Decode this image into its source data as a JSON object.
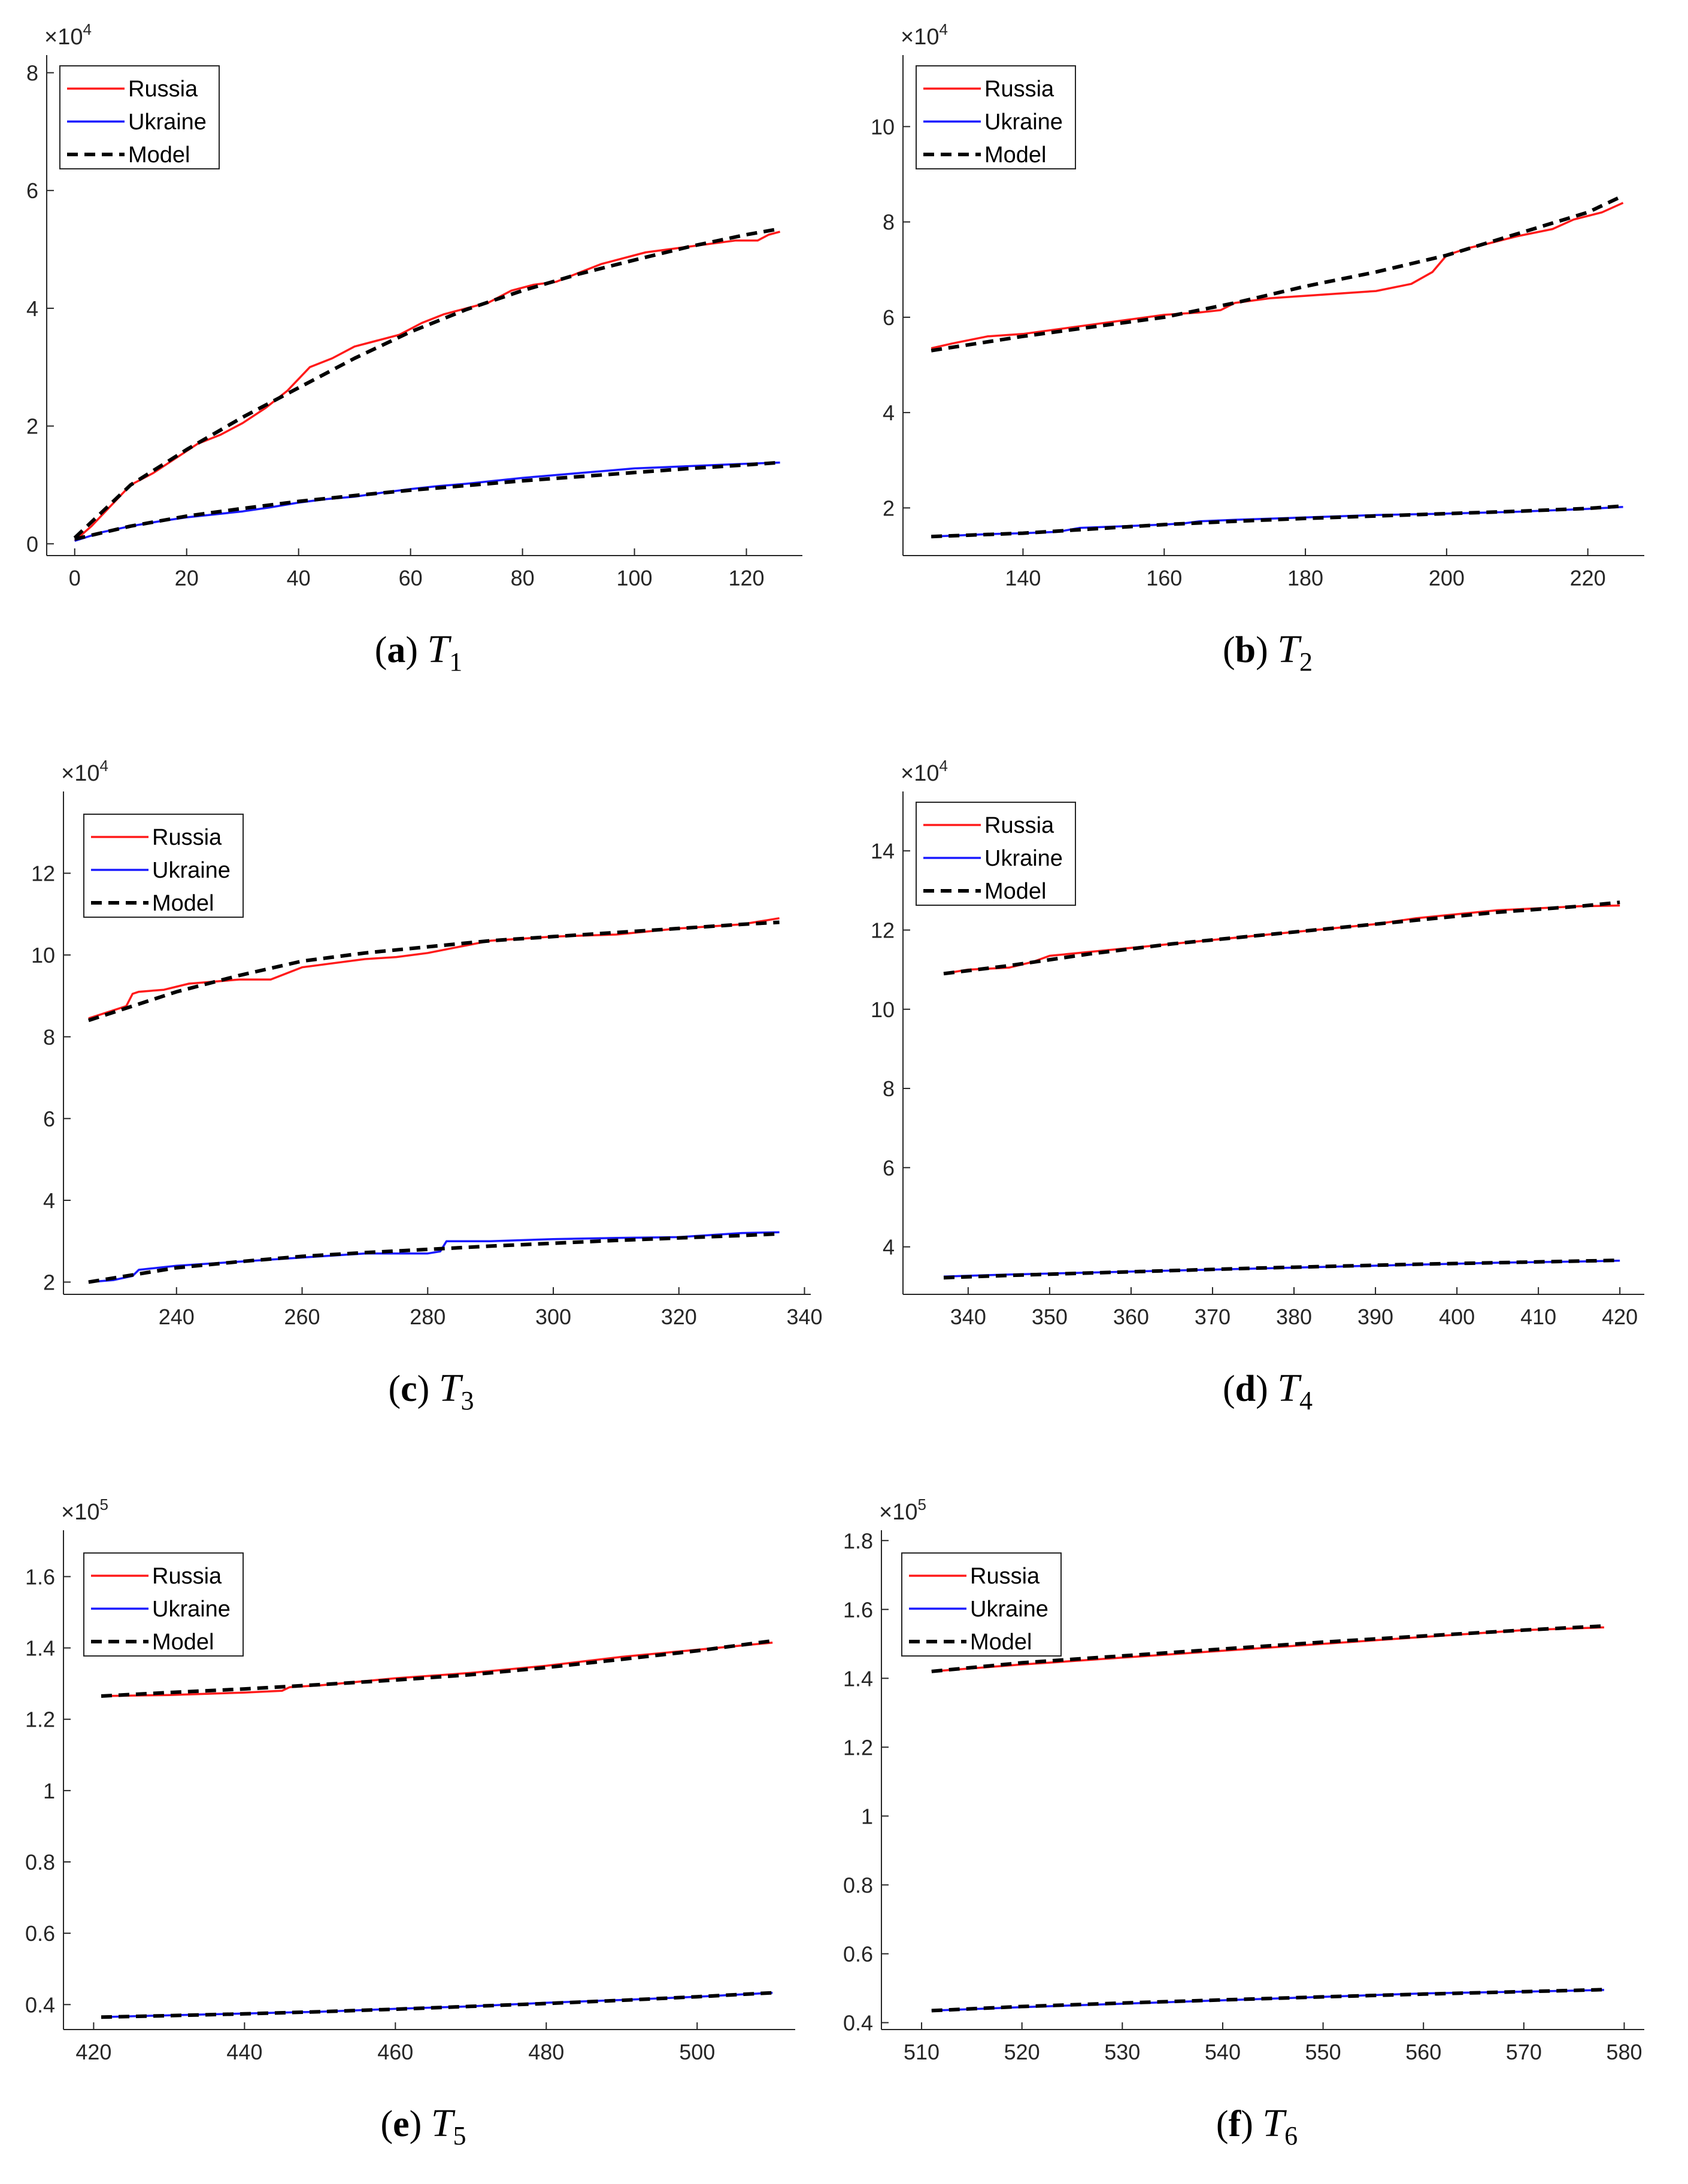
{
  "legend_labels": [
    "Russia",
    "Ukraine",
    "Model"
  ],
  "colors": {
    "russia": "#ff1a1a",
    "ukraine": "#1a1aff",
    "model": "#000000",
    "axis": "#262626"
  },
  "chart_data": [
    {
      "type": "line",
      "panel": "a",
      "caption": {
        "letter": "(a)",
        "symbol": "T",
        "subscript": "1"
      },
      "exponent": {
        "base": "×10",
        "power": "4"
      },
      "xlim": [
        -5,
        130
      ],
      "ylim": [
        -0.2,
        8.3
      ],
      "xticks": [
        0,
        20,
        40,
        60,
        80,
        100,
        120
      ],
      "yticks": [
        0,
        2,
        4,
        6,
        8
      ],
      "ytick_labels": [
        "0",
        "2",
        "4",
        "6",
        "8"
      ],
      "series": [
        {
          "name": "Russia",
          "x": [
            0,
            3,
            6,
            10,
            14,
            18,
            22,
            26,
            30,
            34,
            38,
            42,
            46,
            50,
            54,
            58,
            62,
            66,
            70,
            74,
            78,
            82,
            86,
            90,
            94,
            98,
            102,
            106,
            110,
            114,
            118,
            122,
            124,
            126
          ],
          "y": [
            0.05,
            0.3,
            0.6,
            1.0,
            1.2,
            1.45,
            1.7,
            1.85,
            2.05,
            2.3,
            2.6,
            3.0,
            3.15,
            3.35,
            3.45,
            3.55,
            3.75,
            3.9,
            4.0,
            4.1,
            4.3,
            4.4,
            4.45,
            4.6,
            4.75,
            4.85,
            4.95,
            5.0,
            5.05,
            5.1,
            5.15,
            5.15,
            5.25,
            5.3
          ]
        },
        {
          "name": "Ukraine",
          "x": [
            0,
            5,
            10,
            15,
            20,
            25,
            30,
            35,
            40,
            45,
            50,
            55,
            60,
            65,
            70,
            75,
            80,
            85,
            90,
            95,
            100,
            105,
            110,
            115,
            120,
            126
          ],
          "y": [
            0.05,
            0.2,
            0.3,
            0.38,
            0.45,
            0.5,
            0.55,
            0.62,
            0.7,
            0.76,
            0.8,
            0.87,
            0.93,
            0.98,
            1.02,
            1.07,
            1.12,
            1.16,
            1.2,
            1.24,
            1.28,
            1.3,
            1.32,
            1.34,
            1.36,
            1.38
          ]
        },
        {
          "name": "Model",
          "x": [
            0,
            10,
            20,
            30,
            40,
            50,
            60,
            70,
            80,
            90,
            100,
            110,
            120,
            126
          ],
          "y": [
            0.1,
            1.0,
            1.6,
            2.15,
            2.65,
            3.15,
            3.6,
            3.98,
            4.3,
            4.58,
            4.82,
            5.05,
            5.25,
            5.35
          ]
        },
        {
          "name": "Model",
          "x": [
            0,
            10,
            20,
            30,
            40,
            50,
            60,
            70,
            80,
            90,
            100,
            110,
            120,
            126
          ],
          "y": [
            0.08,
            0.3,
            0.47,
            0.6,
            0.72,
            0.82,
            0.91,
            0.99,
            1.07,
            1.14,
            1.21,
            1.28,
            1.34,
            1.38
          ]
        }
      ]
    },
    {
      "type": "line",
      "panel": "b",
      "caption": {
        "letter": "(b)",
        "symbol": "T",
        "subscript": "2"
      },
      "exponent": {
        "base": "×10",
        "power": "4"
      },
      "xlim": [
        123,
        228
      ],
      "ylim": [
        1,
        11.5
      ],
      "xticks": [
        140,
        160,
        180,
        200,
        220
      ],
      "yticks": [
        2,
        4,
        6,
        8,
        10
      ],
      "ytick_labels": [
        "2",
        "4",
        "6",
        "8",
        "10"
      ],
      "series": [
        {
          "name": "Russia",
          "x": [
            127,
            130,
            135,
            140,
            145,
            150,
            155,
            160,
            165,
            168,
            170,
            175,
            180,
            185,
            190,
            195,
            198,
            200,
            203,
            206,
            210,
            215,
            218,
            222,
            225
          ],
          "y": [
            5.35,
            5.45,
            5.6,
            5.65,
            5.75,
            5.85,
            5.95,
            6.05,
            6.1,
            6.15,
            6.3,
            6.4,
            6.45,
            6.5,
            6.55,
            6.7,
            6.95,
            7.3,
            7.45,
            7.55,
            7.7,
            7.85,
            8.05,
            8.2,
            8.4
          ]
        },
        {
          "name": "Ukraine",
          "x": [
            127,
            135,
            140,
            145,
            148,
            155,
            160,
            163,
            165,
            170,
            180,
            190,
            200,
            210,
            220,
            225
          ],
          "y": [
            1.4,
            1.45,
            1.47,
            1.5,
            1.58,
            1.62,
            1.65,
            1.68,
            1.72,
            1.75,
            1.8,
            1.85,
            1.88,
            1.92,
            1.98,
            2.02
          ]
        },
        {
          "name": "Model",
          "x": [
            127,
            140,
            150,
            160,
            170,
            180,
            190,
            200,
            210,
            220,
            225
          ],
          "y": [
            5.3,
            5.6,
            5.8,
            6.0,
            6.3,
            6.65,
            6.95,
            7.3,
            7.75,
            8.2,
            8.55
          ]
        },
        {
          "name": "Model",
          "x": [
            127,
            140,
            150,
            160,
            170,
            180,
            190,
            200,
            210,
            220,
            225
          ],
          "y": [
            1.4,
            1.47,
            1.56,
            1.65,
            1.72,
            1.78,
            1.83,
            1.88,
            1.93,
            1.99,
            2.04
          ]
        }
      ]
    },
    {
      "type": "line",
      "panel": "c",
      "caption": {
        "letter": "(c)",
        "symbol": "T",
        "subscript": "3"
      },
      "exponent": {
        "base": "×10",
        "power": "4"
      },
      "xlim": [
        222,
        341
      ],
      "ylim": [
        1.7,
        14
      ],
      "xticks": [
        240,
        260,
        280,
        300,
        320,
        340
      ],
      "yticks": [
        2,
        4,
        6,
        8,
        10,
        12
      ],
      "ytick_labels": [
        "2",
        "4",
        "6",
        "8",
        "10",
        "12"
      ],
      "series": [
        {
          "name": "Russia",
          "x": [
            226,
            229,
            232,
            233,
            234,
            238,
            242,
            246,
            250,
            255,
            260,
            265,
            270,
            275,
            280,
            285,
            290,
            295,
            300,
            310,
            320,
            330,
            336
          ],
          "y": [
            8.45,
            8.6,
            8.75,
            9.05,
            9.1,
            9.15,
            9.3,
            9.35,
            9.4,
            9.4,
            9.7,
            9.8,
            9.9,
            9.95,
            10.05,
            10.2,
            10.35,
            10.4,
            10.45,
            10.5,
            10.65,
            10.75,
            10.9
          ]
        },
        {
          "name": "Ukraine",
          "x": [
            226,
            230,
            233,
            234,
            240,
            250,
            260,
            265,
            270,
            280,
            282,
            283,
            290,
            300,
            310,
            320,
            330,
            336
          ],
          "y": [
            2.0,
            2.05,
            2.15,
            2.3,
            2.4,
            2.5,
            2.6,
            2.65,
            2.7,
            2.7,
            2.75,
            3.0,
            3.0,
            3.05,
            3.08,
            3.1,
            3.2,
            3.22
          ]
        },
        {
          "name": "Model",
          "x": [
            226,
            240,
            250,
            260,
            270,
            280,
            290,
            300,
            310,
            320,
            330,
            336
          ],
          "y": [
            8.4,
            9.1,
            9.5,
            9.85,
            10.05,
            10.2,
            10.35,
            10.45,
            10.55,
            10.65,
            10.75,
            10.8
          ]
        },
        {
          "name": "Model",
          "x": [
            226,
            240,
            250,
            260,
            270,
            280,
            290,
            300,
            310,
            320,
            330,
            336
          ],
          "y": [
            2.0,
            2.35,
            2.5,
            2.63,
            2.72,
            2.8,
            2.88,
            2.95,
            3.02,
            3.08,
            3.14,
            3.18
          ]
        }
      ]
    },
    {
      "type": "line",
      "panel": "d",
      "caption": {
        "letter": "(d)",
        "symbol": "T",
        "subscript": "4"
      },
      "exponent": {
        "base": "×10",
        "power": "4"
      },
      "xlim": [
        332,
        423
      ],
      "ylim": [
        2.8,
        15.5
      ],
      "xticks": [
        340,
        350,
        360,
        370,
        380,
        390,
        400,
        410,
        420
      ],
      "yticks": [
        4,
        6,
        8,
        10,
        12,
        14
      ],
      "ytick_labels": [
        "4",
        "6",
        "8",
        "10",
        "12",
        "14"
      ],
      "series": [
        {
          "name": "Russia",
          "x": [
            337,
            340,
            345,
            348,
            350,
            355,
            360,
            365,
            370,
            375,
            380,
            385,
            390,
            395,
            400,
            405,
            410,
            415,
            420
          ],
          "y": [
            10.9,
            11.0,
            11.05,
            11.2,
            11.35,
            11.45,
            11.55,
            11.65,
            11.75,
            11.85,
            11.95,
            12.05,
            12.15,
            12.3,
            12.4,
            12.5,
            12.55,
            12.6,
            12.62
          ]
        },
        {
          "name": "Ukraine",
          "x": [
            337,
            345,
            355,
            365,
            375,
            385,
            395,
            405,
            415,
            420
          ],
          "y": [
            3.25,
            3.3,
            3.35,
            3.4,
            3.45,
            3.5,
            3.55,
            3.6,
            3.63,
            3.65
          ]
        },
        {
          "name": "Model",
          "x": [
            337,
            345,
            355,
            365,
            375,
            385,
            395,
            405,
            415,
            420
          ],
          "y": [
            10.9,
            11.1,
            11.4,
            11.65,
            11.85,
            12.05,
            12.25,
            12.45,
            12.6,
            12.7
          ]
        },
        {
          "name": "Model",
          "x": [
            337,
            345,
            355,
            365,
            375,
            385,
            395,
            405,
            415,
            420
          ],
          "y": [
            3.22,
            3.28,
            3.34,
            3.4,
            3.46,
            3.51,
            3.56,
            3.6,
            3.64,
            3.66
          ]
        }
      ]
    },
    {
      "type": "line",
      "panel": "e",
      "caption": {
        "letter": "(e)",
        "symbol": "T",
        "subscript": "5"
      },
      "exponent": {
        "base": "×10",
        "power": "5"
      },
      "xlim": [
        416,
        513
      ],
      "ylim": [
        0.33,
        1.73
      ],
      "xticks": [
        420,
        440,
        460,
        480,
        500
      ],
      "yticks": [
        0.4,
        0.6,
        0.8,
        1,
        1.2,
        1.4,
        1.6
      ],
      "ytick_labels": [
        "0.4",
        "0.6",
        "0.8",
        "1",
        "1.2",
        "1.4",
        "1.6"
      ],
      "series": [
        {
          "name": "Russia",
          "x": [
            421,
            430,
            440,
            445,
            446,
            450,
            460,
            470,
            480,
            490,
            500,
            510
          ],
          "y": [
            1.265,
            1.268,
            1.275,
            1.28,
            1.29,
            1.295,
            1.315,
            1.33,
            1.35,
            1.375,
            1.395,
            1.415
          ]
        },
        {
          "name": "Ukraine",
          "x": [
            421,
            430,
            440,
            450,
            460,
            470,
            480,
            490,
            500,
            510
          ],
          "y": [
            0.365,
            0.37,
            0.375,
            0.38,
            0.388,
            0.395,
            0.405,
            0.413,
            0.422,
            0.433
          ]
        },
        {
          "name": "Model",
          "x": [
            421,
            430,
            440,
            450,
            460,
            470,
            480,
            490,
            500,
            510
          ],
          "y": [
            1.265,
            1.275,
            1.285,
            1.297,
            1.31,
            1.325,
            1.345,
            1.368,
            1.392,
            1.42
          ]
        },
        {
          "name": "Model",
          "x": [
            421,
            430,
            440,
            450,
            460,
            470,
            480,
            490,
            500,
            510
          ],
          "y": [
            0.365,
            0.369,
            0.374,
            0.38,
            0.387,
            0.395,
            0.403,
            0.412,
            0.422,
            0.433
          ]
        }
      ]
    },
    {
      "type": "line",
      "panel": "f",
      "caption": {
        "letter": "(f)",
        "symbol": "T",
        "subscript": "6"
      },
      "exponent": {
        "base": "×10",
        "power": "5"
      },
      "xlim": [
        506,
        582
      ],
      "ylim": [
        0.38,
        1.83
      ],
      "xticks": [
        510,
        520,
        530,
        540,
        550,
        560,
        570,
        580
      ],
      "yticks": [
        0.4,
        0.6,
        0.8,
        1,
        1.2,
        1.4,
        1.6,
        1.8
      ],
      "ytick_labels": [
        "0.4",
        "0.6",
        "0.8",
        "1",
        "1.2",
        "1.4",
        "1.6",
        "1.8"
      ],
      "series": [
        {
          "name": "Russia",
          "x": [
            511,
            520,
            530,
            540,
            550,
            560,
            570,
            578
          ],
          "y": [
            1.42,
            1.44,
            1.46,
            1.48,
            1.5,
            1.52,
            1.54,
            1.548
          ]
        },
        {
          "name": "Ukraine",
          "x": [
            511,
            520,
            530,
            540,
            550,
            560,
            570,
            578
          ],
          "y": [
            0.435,
            0.445,
            0.455,
            0.465,
            0.475,
            0.485,
            0.49,
            0.495
          ]
        },
        {
          "name": "Model",
          "x": [
            511,
            520,
            530,
            540,
            550,
            560,
            570,
            578
          ],
          "y": [
            1.42,
            1.445,
            1.465,
            1.485,
            1.505,
            1.523,
            1.54,
            1.552
          ]
        },
        {
          "name": "Model",
          "x": [
            511,
            520,
            530,
            540,
            550,
            560,
            570,
            578
          ],
          "y": [
            0.435,
            0.447,
            0.457,
            0.466,
            0.475,
            0.483,
            0.49,
            0.496
          ]
        }
      ]
    }
  ]
}
